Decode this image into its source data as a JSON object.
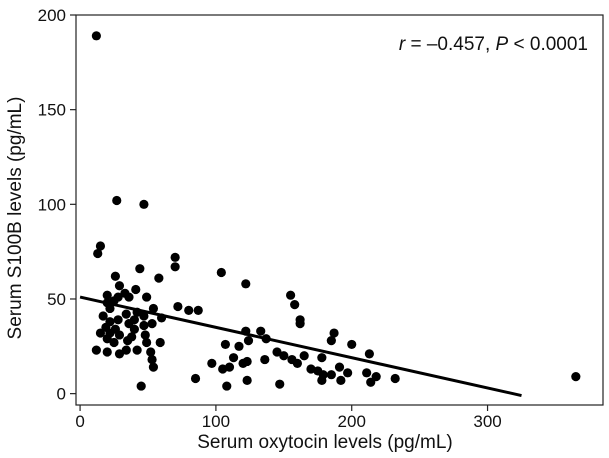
{
  "chart_data": {
    "type": "scatter",
    "xlabel": "Serum oxytocin levels (pg/mL)",
    "ylabel": "Serum S100B levels (pg/mL)",
    "xlim": [
      -3,
      385
    ],
    "ylim": [
      -6,
      200
    ],
    "x_ticks": [
      0,
      100,
      200,
      300
    ],
    "y_ticks": [
      0,
      50,
      100,
      150,
      200
    ],
    "grid": false,
    "legend": "none",
    "annotation": {
      "r_symbol": "r",
      "r_value": " = –0.457, ",
      "p_symbol": "P",
      "p_value": " < 0.0001"
    },
    "regression_line": {
      "x": [
        0,
        325
      ],
      "y": [
        51,
        -1
      ]
    },
    "points": [
      {
        "x": 12,
        "y": 189
      },
      {
        "x": 27,
        "y": 102
      },
      {
        "x": 47,
        "y": 100
      },
      {
        "x": 15,
        "y": 78
      },
      {
        "x": 13,
        "y": 74
      },
      {
        "x": 70,
        "y": 72
      },
      {
        "x": 70,
        "y": 67
      },
      {
        "x": 44,
        "y": 66
      },
      {
        "x": 104,
        "y": 64
      },
      {
        "x": 26,
        "y": 62
      },
      {
        "x": 58,
        "y": 61
      },
      {
        "x": 122,
        "y": 58
      },
      {
        "x": 29,
        "y": 57
      },
      {
        "x": 41,
        "y": 55
      },
      {
        "x": 33,
        "y": 53
      },
      {
        "x": 20,
        "y": 52
      },
      {
        "x": 155,
        "y": 52
      },
      {
        "x": 49,
        "y": 51
      },
      {
        "x": 36,
        "y": 51
      },
      {
        "x": 28,
        "y": 51
      },
      {
        "x": 25,
        "y": 49
      },
      {
        "x": 20,
        "y": 48
      },
      {
        "x": 158,
        "y": 47
      },
      {
        "x": 72,
        "y": 46
      },
      {
        "x": 22,
        "y": 45
      },
      {
        "x": 54,
        "y": 45
      },
      {
        "x": 80,
        "y": 44
      },
      {
        "x": 87,
        "y": 44
      },
      {
        "x": 42,
        "y": 43
      },
      {
        "x": 34,
        "y": 42
      },
      {
        "x": 17,
        "y": 41
      },
      {
        "x": 47,
        "y": 41
      },
      {
        "x": 60,
        "y": 40
      },
      {
        "x": 40,
        "y": 39
      },
      {
        "x": 28,
        "y": 39
      },
      {
        "x": 22,
        "y": 38
      },
      {
        "x": 162,
        "y": 39
      },
      {
        "x": 162,
        "y": 37
      },
      {
        "x": 36,
        "y": 37
      },
      {
        "x": 53,
        "y": 37
      },
      {
        "x": 47,
        "y": 36
      },
      {
        "x": 19,
        "y": 35
      },
      {
        "x": 26,
        "y": 34
      },
      {
        "x": 40,
        "y": 34
      },
      {
        "x": 122,
        "y": 33
      },
      {
        "x": 133,
        "y": 33
      },
      {
        "x": 187,
        "y": 32
      },
      {
        "x": 15,
        "y": 32
      },
      {
        "x": 22,
        "y": 32
      },
      {
        "x": 29,
        "y": 31
      },
      {
        "x": 48,
        "y": 31
      },
      {
        "x": 38,
        "y": 30
      },
      {
        "x": 20,
        "y": 29
      },
      {
        "x": 137,
        "y": 29
      },
      {
        "x": 124,
        "y": 28
      },
      {
        "x": 185,
        "y": 28
      },
      {
        "x": 35,
        "y": 28
      },
      {
        "x": 49,
        "y": 27
      },
      {
        "x": 59,
        "y": 27
      },
      {
        "x": 25,
        "y": 27
      },
      {
        "x": 200,
        "y": 26
      },
      {
        "x": 107,
        "y": 26
      },
      {
        "x": 117,
        "y": 25
      },
      {
        "x": 12,
        "y": 23
      },
      {
        "x": 34,
        "y": 23
      },
      {
        "x": 42,
        "y": 23
      },
      {
        "x": 52,
        "y": 22
      },
      {
        "x": 20,
        "y": 22
      },
      {
        "x": 145,
        "y": 22
      },
      {
        "x": 29,
        "y": 21
      },
      {
        "x": 213,
        "y": 21
      },
      {
        "x": 150,
        "y": 20
      },
      {
        "x": 165,
        "y": 20
      },
      {
        "x": 178,
        "y": 19
      },
      {
        "x": 113,
        "y": 19
      },
      {
        "x": 53,
        "y": 18
      },
      {
        "x": 156,
        "y": 18
      },
      {
        "x": 136,
        "y": 18
      },
      {
        "x": 123,
        "y": 17
      },
      {
        "x": 97,
        "y": 16
      },
      {
        "x": 160,
        "y": 16
      },
      {
        "x": 120,
        "y": 16
      },
      {
        "x": 54,
        "y": 14
      },
      {
        "x": 191,
        "y": 14
      },
      {
        "x": 110,
        "y": 14
      },
      {
        "x": 105,
        "y": 13
      },
      {
        "x": 170,
        "y": 13
      },
      {
        "x": 175,
        "y": 12
      },
      {
        "x": 197,
        "y": 11
      },
      {
        "x": 211,
        "y": 11
      },
      {
        "x": 185,
        "y": 10
      },
      {
        "x": 179,
        "y": 10
      },
      {
        "x": 218,
        "y": 9
      },
      {
        "x": 365,
        "y": 9
      },
      {
        "x": 232,
        "y": 8
      },
      {
        "x": 85,
        "y": 8
      },
      {
        "x": 178,
        "y": 7
      },
      {
        "x": 192,
        "y": 7
      },
      {
        "x": 123,
        "y": 7
      },
      {
        "x": 214,
        "y": 6
      },
      {
        "x": 147,
        "y": 5
      },
      {
        "x": 45,
        "y": 4
      },
      {
        "x": 108,
        "y": 4
      }
    ]
  }
}
